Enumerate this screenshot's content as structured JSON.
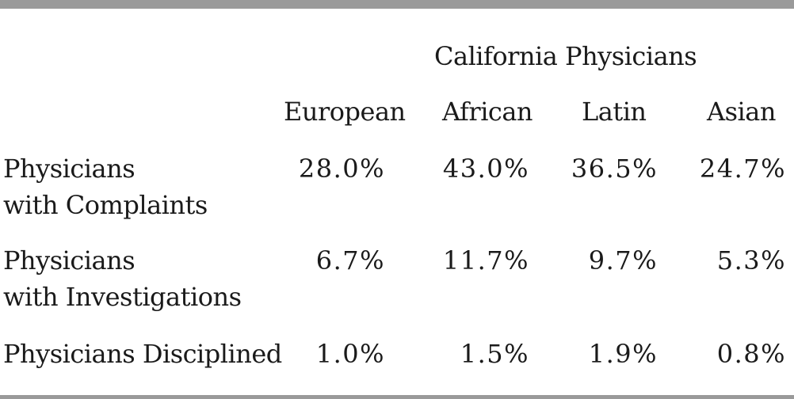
{
  "table": {
    "group_header": "California Physicians",
    "columns": [
      "European",
      "African",
      "Latin",
      "Asian"
    ],
    "rows": [
      {
        "label_line1": "Physicians",
        "label_line2": "with Complaints",
        "values": [
          "28.0%",
          "43.0%",
          "36.5%",
          "24.7%"
        ]
      },
      {
        "label_line1": "Physicians",
        "label_line2": "with Investigations",
        "values": [
          "6.7%",
          "11.7%",
          "9.7%",
          "5.3%"
        ]
      },
      {
        "label_line1": "Physicians Disciplined",
        "label_line2": "",
        "values": [
          "1.0%",
          "1.5%",
          "1.9%",
          "0.8%"
        ]
      }
    ]
  }
}
